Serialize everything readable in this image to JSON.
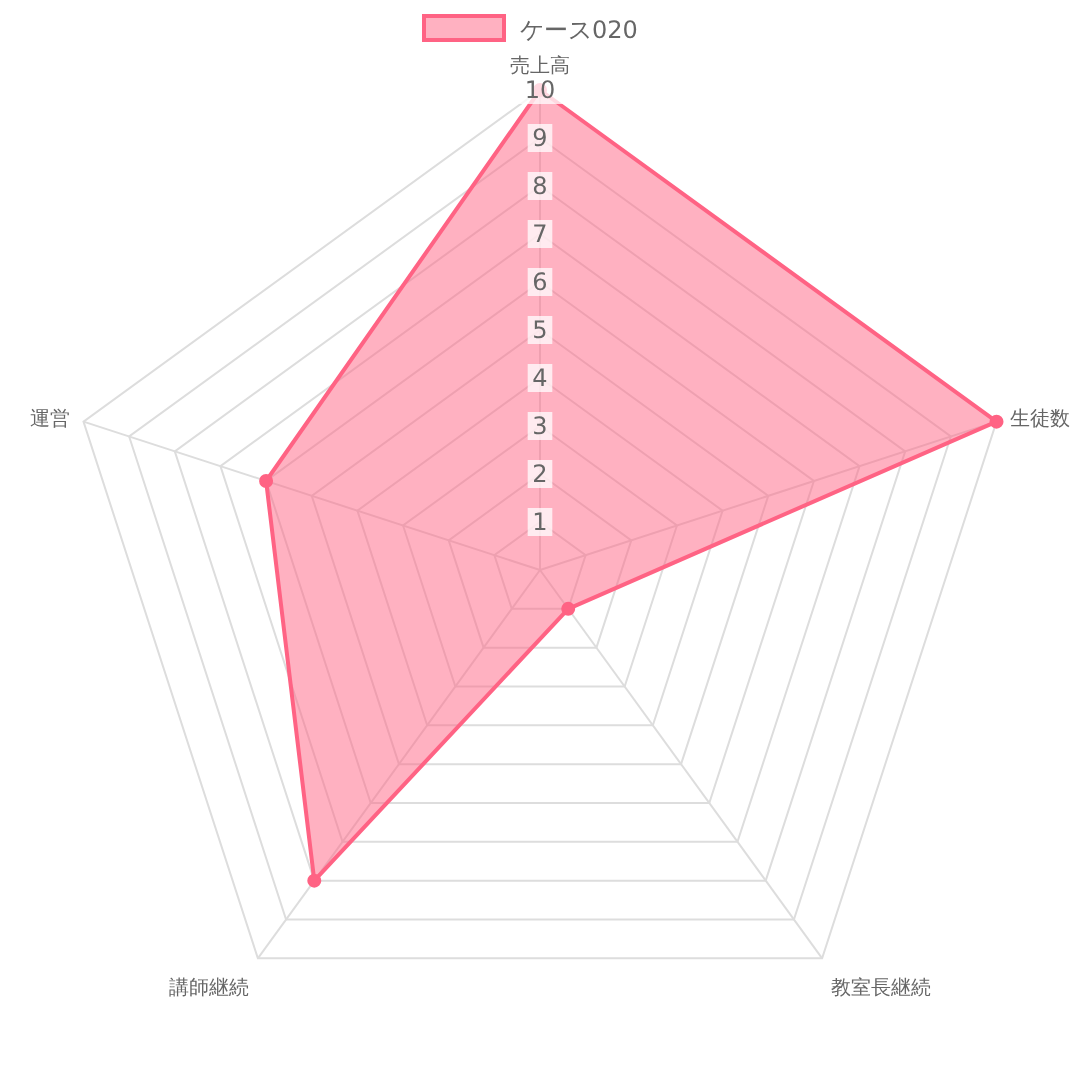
{
  "chart_data": {
    "type": "radar",
    "categories": [
      "売上高",
      "生徒数",
      "教室長継続",
      "講師継続",
      "運営"
    ],
    "series": [
      {
        "name": "ケース020",
        "color": "#ff6384",
        "values": [
          10,
          10,
          1,
          8,
          6
        ]
      }
    ],
    "ylim": [
      0,
      10
    ],
    "yticks": [
      1,
      2,
      3,
      4,
      5,
      6,
      7,
      8,
      9,
      10
    ],
    "grid": true,
    "legend": "top",
    "marker": "circle"
  }
}
